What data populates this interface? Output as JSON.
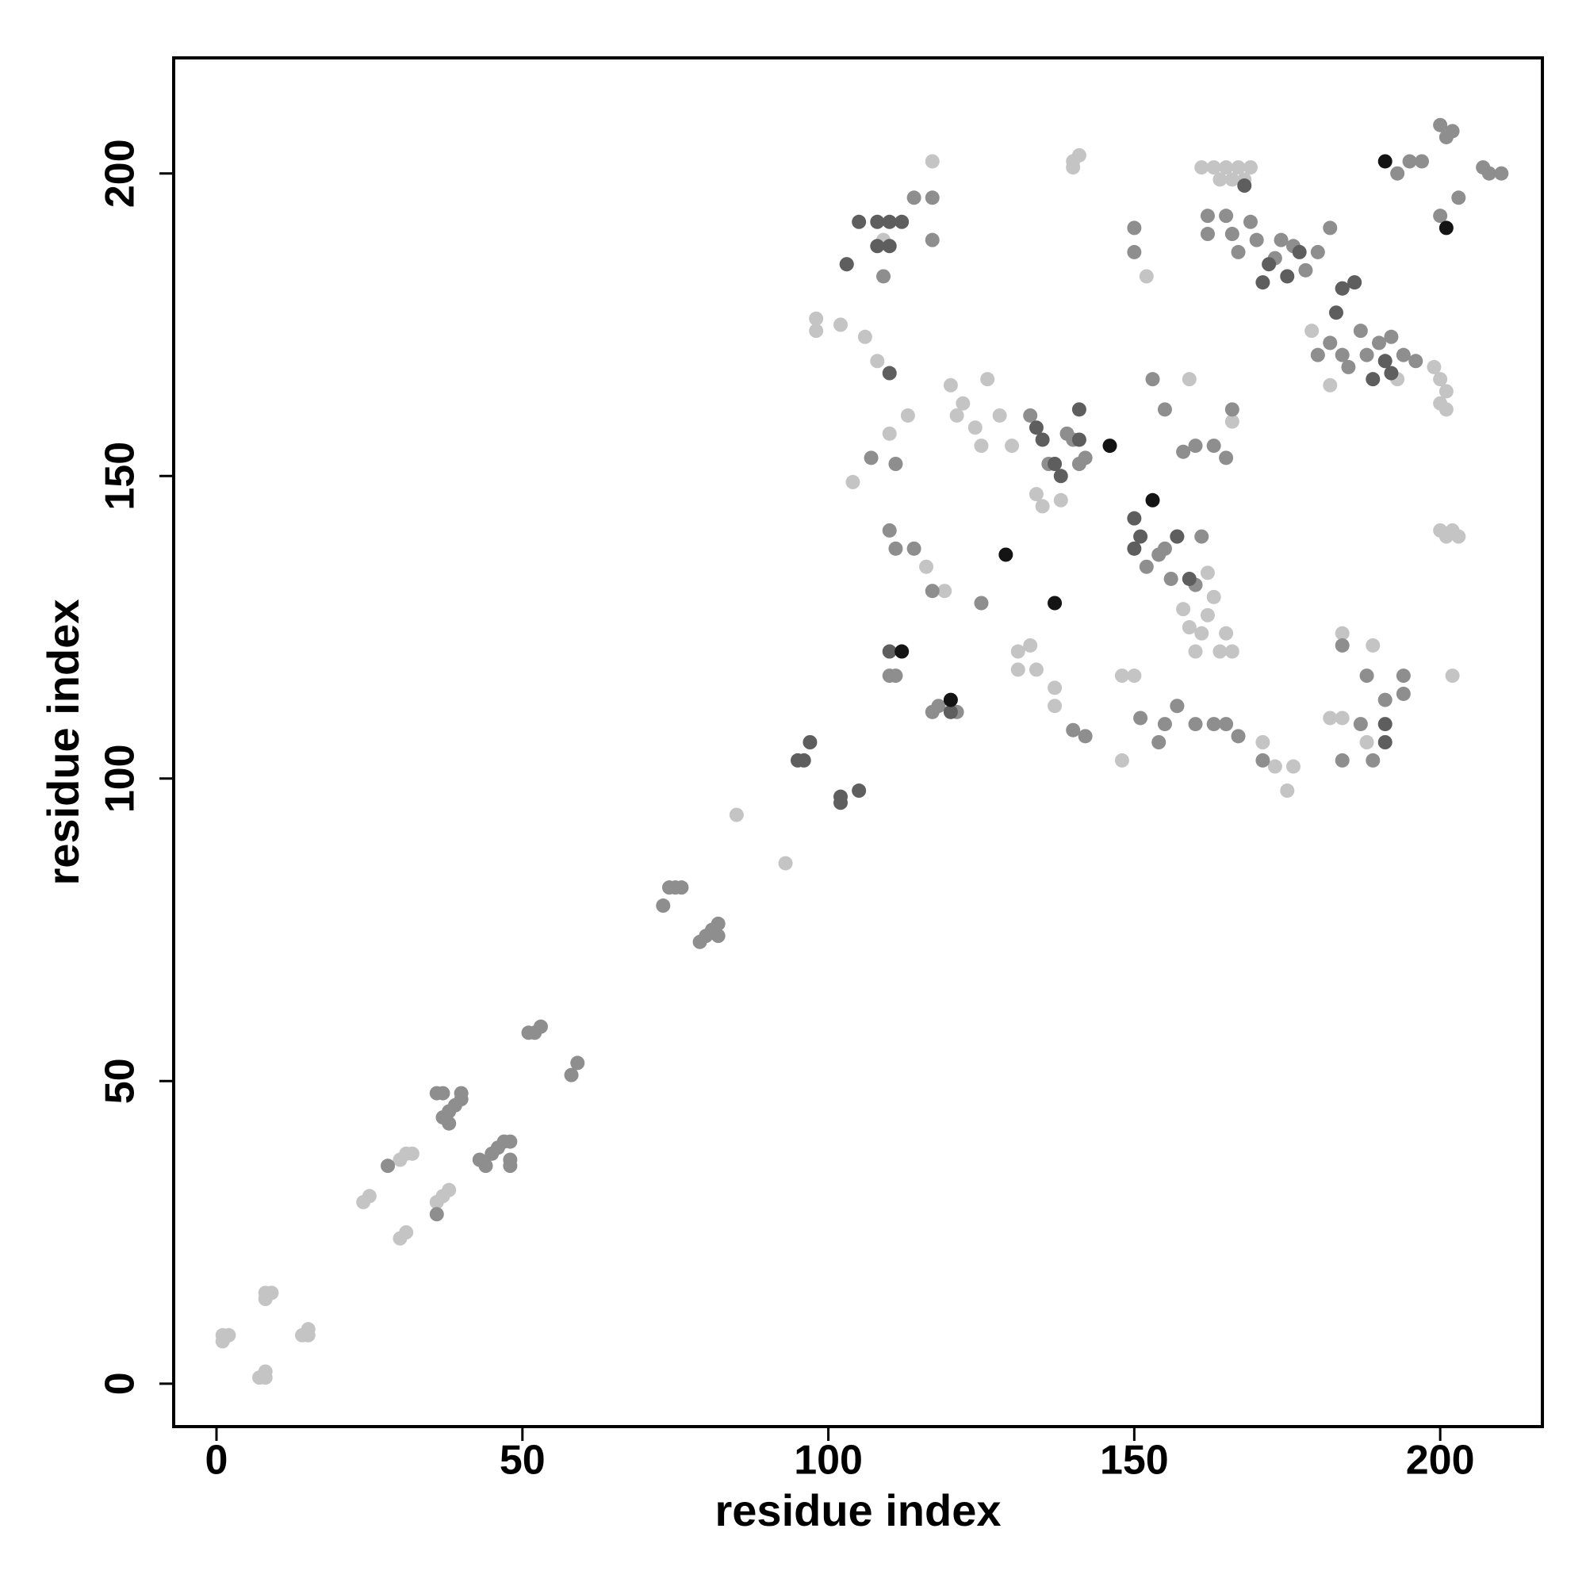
{
  "chart_data": {
    "type": "scatter",
    "x_label": "residue index",
    "y_label": "residue index",
    "xlim": [
      -7,
      216.7
    ],
    "ylim": [
      -7.1,
      219.1
    ],
    "xticks": [
      0,
      50,
      100,
      150,
      200
    ],
    "yticks": [
      0,
      50,
      100,
      150,
      200
    ],
    "series": [
      {
        "color": "#c4c4c4",
        "x": [
          1,
          2,
          1,
          7,
          8,
          8,
          8,
          9,
          8,
          14,
          15,
          15,
          24,
          25,
          30,
          31,
          30,
          31,
          32,
          36,
          37,
          38,
          85,
          93,
          158,
          159,
          160,
          161,
          162,
          164,
          165,
          163,
          162,
          166,
          134,
          135,
          138,
          120,
          122,
          124,
          126,
          128,
          130,
          121,
          125,
          109,
          98,
          98,
          102,
          106,
          108,
          110,
          113,
          104,
          116,
          119,
          131,
          133,
          134,
          131,
          137,
          137,
          148,
          150,
          157,
          148,
          171,
          173,
          175,
          176,
          182,
          184,
          184,
          188,
          189,
          161,
          163,
          164,
          165,
          166,
          167,
          168,
          169,
          199,
          200,
          201,
          200,
          201,
          200,
          201,
          202,
          203,
          202,
          140,
          141,
          140,
          117,
          152,
          159,
          166,
          182,
          179,
          193
        ],
        "y": [
          8,
          8,
          7,
          1,
          1,
          2,
          15,
          15,
          14,
          8,
          9,
          8,
          30,
          31,
          24,
          25,
          37,
          38,
          38,
          30,
          31,
          32,
          94,
          86,
          128,
          125,
          121,
          124,
          127,
          121,
          124,
          130,
          134,
          121,
          147,
          145,
          146,
          165,
          162,
          158,
          166,
          160,
          155,
          160,
          155,
          189,
          176,
          174,
          175,
          173,
          169,
          157,
          160,
          149,
          135,
          131,
          121,
          122,
          118,
          118,
          115,
          112,
          117,
          117,
          112,
          103,
          106,
          102,
          98,
          102,
          110,
          110,
          124,
          106,
          122,
          201,
          201,
          199,
          201,
          199,
          201,
          199,
          201,
          168,
          166,
          164,
          162,
          161,
          141,
          140,
          141,
          140,
          117,
          202,
          203,
          201,
          202,
          183,
          166,
          159,
          165,
          174,
          166
        ]
      },
      {
        "color": "#8e8e8e",
        "x": [
          28,
          36,
          36,
          37,
          37,
          38,
          39,
          40,
          40,
          38,
          43,
          44,
          45,
          46,
          47,
          48,
          48,
          48,
          51,
          52,
          53,
          58,
          59,
          73,
          74,
          75,
          76,
          79,
          80,
          81,
          82,
          82,
          152,
          155,
          157,
          154,
          156,
          161,
          160,
          133,
          136,
          139,
          140,
          141,
          142,
          103,
          114,
          117,
          117,
          109,
          107,
          111,
          110,
          111,
          114,
          117,
          110,
          111,
          117,
          118,
          121,
          125,
          140,
          142,
          151,
          154,
          155,
          157,
          160,
          163,
          165,
          167,
          171,
          184,
          187,
          188,
          191,
          194,
          194,
          184,
          189,
          162,
          162,
          165,
          166,
          167,
          169,
          170,
          173,
          174,
          176,
          178,
          180,
          180,
          182,
          184,
          185,
          187,
          188,
          190,
          192,
          194,
          196,
          182,
          186,
          200,
          201,
          202,
          200,
          203,
          193,
          195,
          197,
          207,
          208,
          210,
          153,
          155,
          158,
          160,
          163,
          165,
          166,
          150,
          150
        ],
        "y": [
          36,
          28,
          48,
          48,
          44,
          45,
          46,
          47,
          48,
          43,
          37,
          36,
          38,
          39,
          40,
          40,
          37,
          36,
          58,
          58,
          59,
          51,
          53,
          79,
          82,
          82,
          82,
          73,
          74,
          75,
          76,
          74,
          135,
          138,
          140,
          137,
          133,
          140,
          132,
          160,
          152,
          157,
          156,
          152,
          153,
          185,
          196,
          196,
          189,
          183,
          153,
          152,
          141,
          138,
          138,
          131,
          117,
          117,
          111,
          112,
          111,
          129,
          108,
          107,
          110,
          106,
          109,
          112,
          109,
          109,
          109,
          107,
          103,
          103,
          109,
          117,
          113,
          117,
          114,
          122,
          103,
          193,
          190,
          193,
          190,
          187,
          192,
          189,
          186,
          189,
          188,
          184,
          187,
          170,
          172,
          170,
          168,
          174,
          170,
          172,
          173,
          170,
          169,
          191,
          182,
          208,
          206,
          207,
          193,
          196,
          200,
          202,
          202,
          201,
          200,
          200,
          166,
          161,
          154,
          155,
          155,
          153,
          161,
          191,
          187
        ]
      },
      {
        "color": "#5e5e5e",
        "x": [
          95,
          96,
          97,
          102,
          102,
          105,
          150,
          151,
          150,
          157,
          159,
          134,
          135,
          137,
          138,
          105,
          108,
          110,
          112,
          108,
          110,
          103,
          110,
          120,
          110,
          141,
          141,
          191,
          191,
          168,
          171,
          172,
          175,
          177,
          183,
          184,
          189,
          191,
          192,
          186,
          184
        ],
        "y": [
          103,
          103,
          106,
          96,
          97,
          98,
          143,
          140,
          138,
          140,
          133,
          158,
          156,
          152,
          150,
          192,
          192,
          192,
          192,
          188,
          188,
          185,
          121,
          111,
          167,
          161,
          156,
          109,
          106,
          198,
          182,
          185,
          183,
          187,
          177,
          181,
          166,
          169,
          167,
          182,
          181
        ]
      },
      {
        "color": "#141414",
        "x": [
          153,
          146,
          129,
          137,
          112,
          120,
          201,
          191
        ],
        "y": [
          146,
          155,
          137,
          129,
          121,
          113,
          191,
          202
        ]
      }
    ]
  }
}
